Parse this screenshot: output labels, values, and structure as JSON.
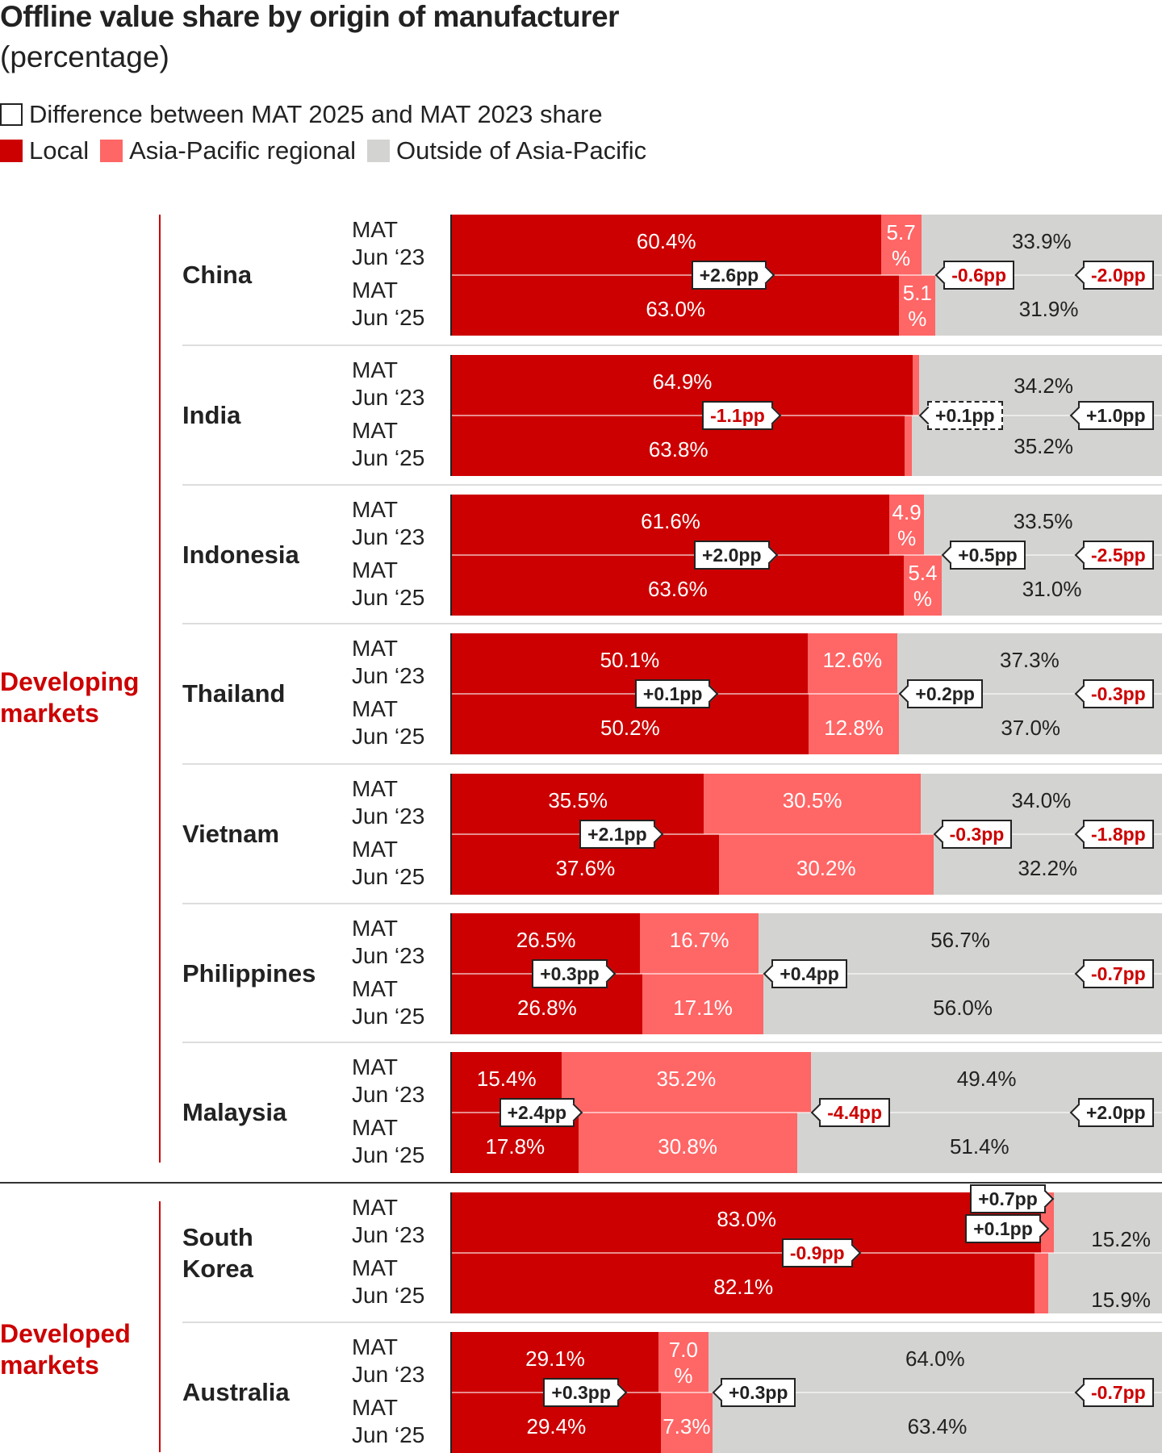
{
  "chart_data": {
    "type": "bar",
    "orientation": "horizontal-stacked",
    "title": "Offline value share by origin of manufacturer",
    "subtitle": "(percentage)",
    "legend": {
      "difference_label": "Difference between MAT 2025 and MAT 2023 share",
      "series": [
        {
          "name": "Local",
          "color": "#cc0000"
        },
        {
          "name": "Asia-Pacific regional",
          "color": "#ff6666"
        },
        {
          "name": "Outside of Asia-Pacific",
          "color": "#d3d3d1"
        }
      ],
      "placement": "top-left"
    },
    "period_labels": {
      "mat": "MAT",
      "p1": "Jun ‘23",
      "p2": "Jun ‘25"
    },
    "groups": [
      {
        "name": "Developing markets",
        "countries": [
          "China",
          "India",
          "Indonesia",
          "Thailand",
          "Vietnam",
          "Philippines",
          "Malaysia"
        ]
      },
      {
        "name": "Developed markets",
        "countries": [
          "South Korea",
          "Australia"
        ]
      }
    ],
    "xlim": [
      0,
      100
    ],
    "rows": [
      {
        "country": "China",
        "local": [
          60.4,
          63.0
        ],
        "apac": [
          5.7,
          5.1
        ],
        "outside": [
          33.9,
          31.9
        ],
        "diff": {
          "local": "+2.6pp",
          "apac": "-0.6pp",
          "outside": "-2.0pp"
        }
      },
      {
        "country": "India",
        "local": [
          64.9,
          63.8
        ],
        "apac": [
          0.9,
          1.0
        ],
        "outside": [
          34.2,
          35.2
        ],
        "diff": {
          "local": "-1.1pp",
          "apac": "+0.1pp",
          "outside": "+1.0pp"
        },
        "apac_diff_dashed": true
      },
      {
        "country": "Indonesia",
        "local": [
          61.6,
          63.6
        ],
        "apac": [
          4.9,
          5.4
        ],
        "outside": [
          33.5,
          31.0
        ],
        "diff": {
          "local": "+2.0pp",
          "apac": "+0.5pp",
          "outside": "-2.5pp"
        }
      },
      {
        "country": "Thailand",
        "local": [
          50.1,
          50.2
        ],
        "apac": [
          12.6,
          12.8
        ],
        "outside": [
          37.3,
          37.0
        ],
        "diff": {
          "local": "+0.1pp",
          "apac": "+0.2pp",
          "outside": "-0.3pp"
        }
      },
      {
        "country": "Vietnam",
        "local": [
          35.5,
          37.6
        ],
        "apac": [
          30.5,
          30.2
        ],
        "outside": [
          34.0,
          32.2
        ],
        "diff": {
          "local": "+2.1pp",
          "apac": "-0.3pp",
          "outside": "-1.8pp"
        }
      },
      {
        "country": "Philippines",
        "local": [
          26.5,
          26.8
        ],
        "apac": [
          16.7,
          17.1
        ],
        "outside": [
          56.7,
          56.0
        ],
        "diff": {
          "local": "+0.3pp",
          "apac": "+0.4pp",
          "outside": "-0.7pp"
        }
      },
      {
        "country": "Malaysia",
        "local": [
          15.4,
          17.8
        ],
        "apac": [
          35.2,
          30.8
        ],
        "outside": [
          49.4,
          51.4
        ],
        "diff": {
          "local": "+2.4pp",
          "apac": "-4.4pp",
          "outside": "+2.0pp"
        }
      },
      {
        "country": "South Korea",
        "local": [
          83.0,
          82.1
        ],
        "apac": [
          1.8,
          1.9
        ],
        "outside": [
          15.2,
          15.9
        ],
        "diff": {
          "local": "-0.9pp",
          "apac": "+0.1pp",
          "outside": "+0.7pp"
        }
      },
      {
        "country": "Australia",
        "local": [
          29.1,
          29.4
        ],
        "apac": [
          7.0,
          7.3
        ],
        "outside": [
          64.0,
          63.4
        ],
        "diff": {
          "local": "+0.3pp",
          "apac": "+0.3pp",
          "outside": "-0.7pp"
        }
      }
    ]
  }
}
